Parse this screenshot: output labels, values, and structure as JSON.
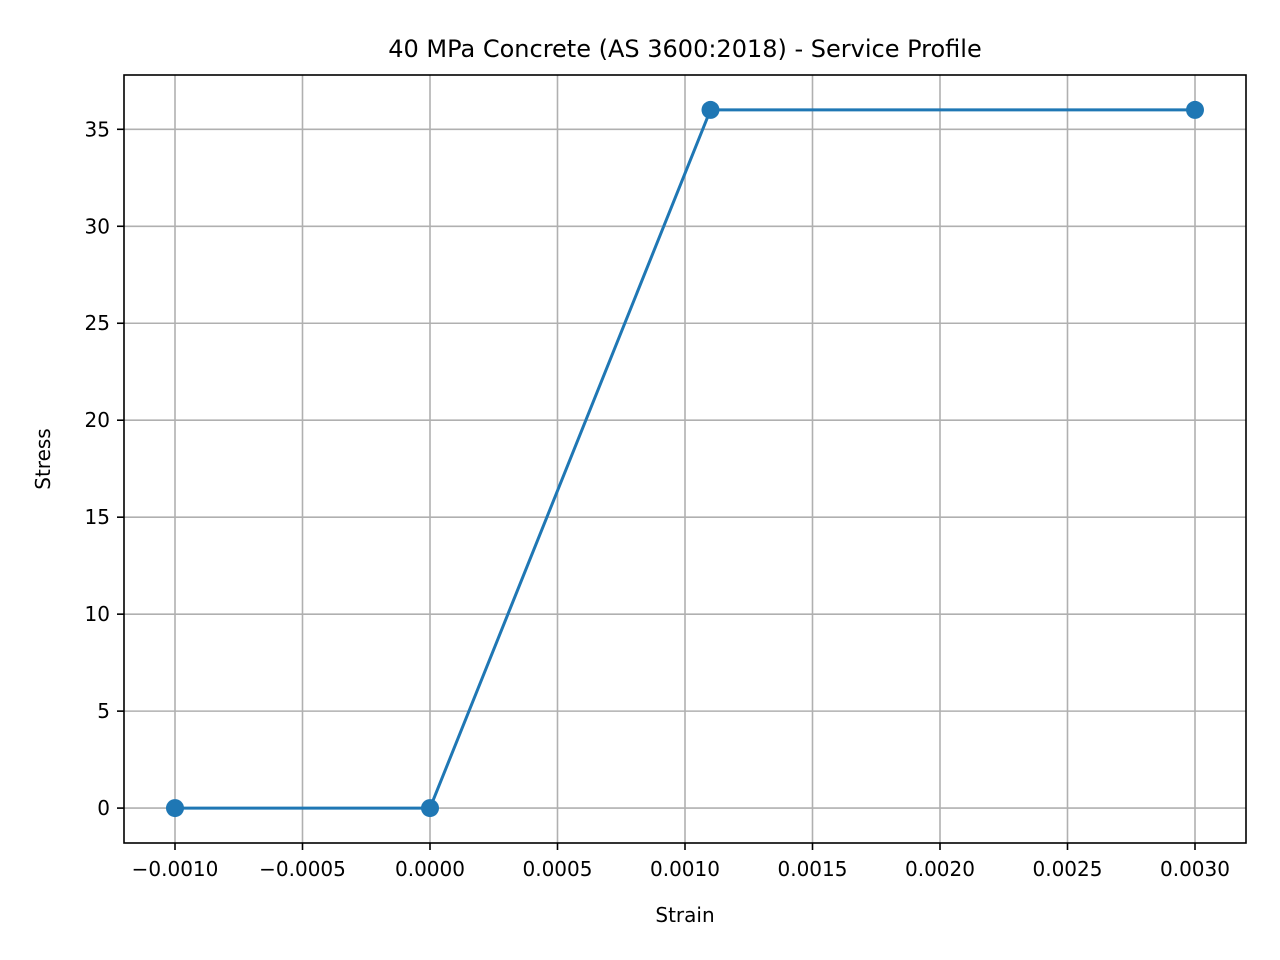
{
  "chart_data": {
    "type": "line",
    "title": "40 MPa Concrete (AS 3600:2018) - Service Profile",
    "xlabel": "Strain",
    "ylabel": "Stress",
    "xlim": [
      -0.0012,
      0.0032
    ],
    "ylim": [
      -1.8,
      37.8
    ],
    "x_ticks": [
      -0.001,
      -0.0005,
      0.0,
      0.0005,
      0.001,
      0.0015,
      0.002,
      0.0025,
      0.003
    ],
    "x_tick_labels": [
      "−0.0010",
      "−0.0005",
      "0.0000",
      "0.0005",
      "0.0010",
      "0.0015",
      "0.0020",
      "0.0025",
      "0.0030"
    ],
    "y_ticks": [
      0,
      5,
      10,
      15,
      20,
      25,
      30,
      35
    ],
    "y_tick_labels": [
      "0",
      "5",
      "10",
      "15",
      "20",
      "25",
      "30",
      "35"
    ],
    "grid": true,
    "legend": null,
    "series": [
      {
        "name": "Service Profile",
        "color": "#1f77b4",
        "marker": "circle",
        "x": [
          -0.001,
          0.0,
          0.0011,
          0.003
        ],
        "y": [
          0,
          0,
          36,
          36
        ]
      }
    ]
  },
  "colors": {
    "line": "#1f77b4",
    "grid": "#b0b0b0",
    "frame": "#000000",
    "background": "#ffffff"
  }
}
